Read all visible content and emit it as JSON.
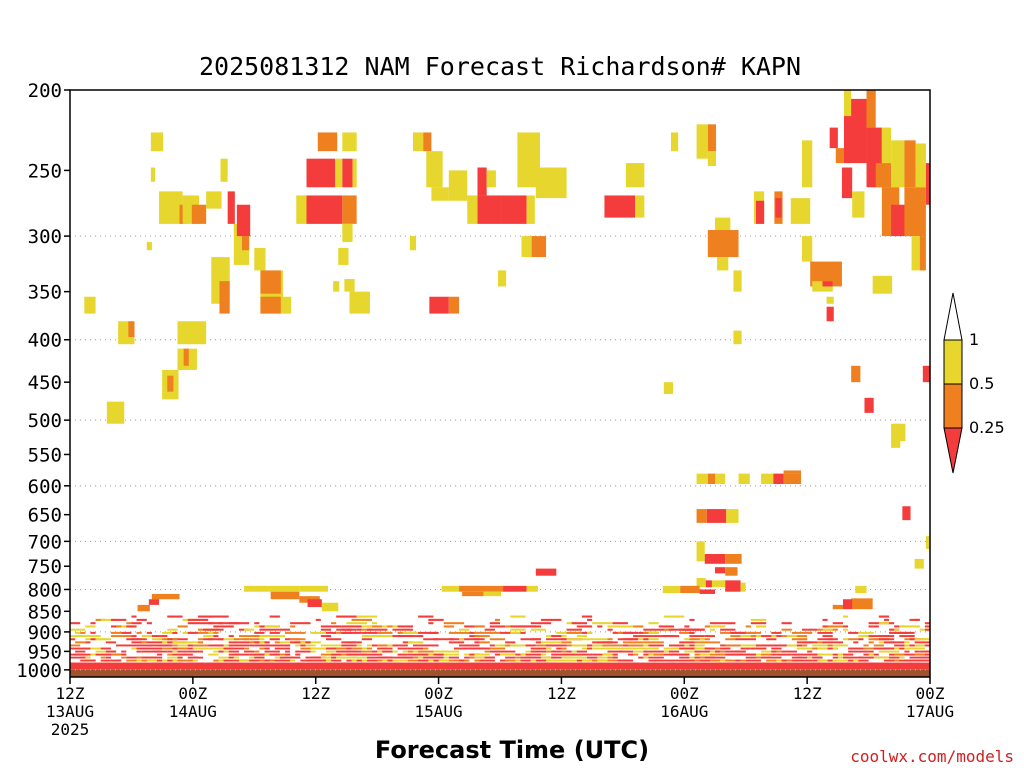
{
  "chart_data": {
    "type": "heatmap",
    "title": "2025081312 NAM Forecast Richardson# KAPN",
    "xlabel": "Forecast Time (UTC)",
    "credit": "coolwx.com/models",
    "y_ticks": [
      "200",
      "250",
      "300",
      "350",
      "400",
      "450",
      "500",
      "550",
      "600",
      "650",
      "700",
      "750",
      "800",
      "850",
      "900",
      "950",
      "1000"
    ],
    "y_gridlines": [
      300,
      400,
      500,
      600,
      700,
      800,
      900,
      1000
    ],
    "x_ticks": [
      {
        "hour": 0,
        "line1": "12Z",
        "line2": "13AUG",
        "line3": "2025"
      },
      {
        "hour": 12,
        "line1": "00Z",
        "line2": "14AUG",
        "line3": ""
      },
      {
        "hour": 24,
        "line1": "12Z",
        "line2": "",
        "line3": ""
      },
      {
        "hour": 36,
        "line1": "00Z",
        "line2": "15AUG",
        "line3": ""
      },
      {
        "hour": 48,
        "line1": "12Z",
        "line2": "",
        "line3": ""
      },
      {
        "hour": 60,
        "line1": "00Z",
        "line2": "16AUG",
        "line3": ""
      },
      {
        "hour": 72,
        "line1": "12Z",
        "line2": "",
        "line3": ""
      },
      {
        "hour": 84,
        "line1": "00Z",
        "line2": "17AUG",
        "line3": ""
      }
    ],
    "x_range_hours": [
      0,
      84
    ],
    "y_range_hPa": [
      200,
      1020
    ],
    "y_scale": "log",
    "grid": "dotted at 300-1000 hPa",
    "colorbar": {
      "placement": "right",
      "labels": [
        "1",
        "0.5",
        "0.25"
      ],
      "bins": [
        {
          "range": "<0.25",
          "color": "#f43c3c"
        },
        {
          "range": "0.25-0.5",
          "color": "#ee8020"
        },
        {
          "range": "0.5-1",
          "color": "#e6d62e"
        },
        {
          "range": ">1",
          "color": "#ffffff"
        }
      ]
    },
    "ground_color": "#a0522d",
    "ground_level_hPa": 1000,
    "cells": [
      {
        "t0": 7.9,
        "t1": 9.1,
        "p0": 225,
        "p1": 237,
        "c": "y"
      },
      {
        "t0": 7.9,
        "t1": 8.3,
        "p0": 248,
        "p1": 258,
        "c": "y"
      },
      {
        "t0": 8.7,
        "t1": 11.0,
        "p0": 265,
        "p1": 290,
        "c": "y"
      },
      {
        "t0": 10.7,
        "t1": 11.3,
        "p0": 275,
        "p1": 290,
        "c": "o"
      },
      {
        "t0": 11.0,
        "t1": 12.6,
        "p0": 268,
        "p1": 290,
        "c": "y"
      },
      {
        "t0": 11.9,
        "t1": 13.3,
        "p0": 275,
        "p1": 290,
        "c": "o"
      },
      {
        "t0": 13.3,
        "t1": 14.8,
        "p0": 265,
        "p1": 278,
        "c": "y"
      },
      {
        "t0": 14.7,
        "t1": 15.4,
        "p0": 242,
        "p1": 258,
        "c": "y"
      },
      {
        "t0": 15.4,
        "t1": 16.1,
        "p0": 265,
        "p1": 290,
        "c": "r"
      },
      {
        "t0": 16.0,
        "t1": 17.5,
        "p0": 290,
        "p1": 325,
        "c": "y"
      },
      {
        "t0": 16.8,
        "t1": 17.5,
        "p0": 300,
        "p1": 312,
        "c": "o"
      },
      {
        "t0": 7.5,
        "t1": 8.0,
        "p0": 305,
        "p1": 312,
        "c": "y"
      },
      {
        "t0": 1.4,
        "t1": 2.5,
        "p0": 355,
        "p1": 372,
        "c": "y"
      },
      {
        "t0": 4.7,
        "t1": 6.3,
        "p0": 380,
        "p1": 405,
        "c": "y"
      },
      {
        "t0": 5.7,
        "t1": 6.3,
        "p0": 380,
        "p1": 397,
        "c": "o"
      },
      {
        "t0": 10.5,
        "t1": 13.3,
        "p0": 380,
        "p1": 405,
        "c": "y"
      },
      {
        "t0": 10.5,
        "t1": 12.4,
        "p0": 410,
        "p1": 435,
        "c": "y"
      },
      {
        "t0": 11.1,
        "t1": 11.6,
        "p0": 410,
        "p1": 430,
        "c": "o"
      },
      {
        "t0": 9.0,
        "t1": 10.6,
        "p0": 435,
        "p1": 472,
        "c": "y"
      },
      {
        "t0": 9.5,
        "t1": 10.1,
        "p0": 442,
        "p1": 462,
        "c": "o"
      },
      {
        "t0": 3.6,
        "t1": 5.3,
        "p0": 475,
        "p1": 505,
        "c": "y"
      },
      {
        "t0": 13.8,
        "t1": 15.6,
        "p0": 318,
        "p1": 362,
        "c": "y"
      },
      {
        "t0": 14.6,
        "t1": 15.6,
        "p0": 340,
        "p1": 372,
        "c": "o"
      },
      {
        "t0": 18.0,
        "t1": 19.1,
        "p0": 310,
        "p1": 330,
        "c": "y"
      },
      {
        "t0": 18.6,
        "t1": 20.8,
        "p0": 330,
        "p1": 372,
        "c": "y"
      },
      {
        "t0": 18.6,
        "t1": 20.6,
        "p0": 330,
        "p1": 352,
        "c": "o"
      },
      {
        "t0": 18.6,
        "t1": 20.6,
        "p0": 355,
        "p1": 372,
        "c": "o"
      },
      {
        "t0": 20.6,
        "t1": 21.6,
        "p0": 355,
        "p1": 372,
        "c": "y"
      },
      {
        "t0": 16.3,
        "t1": 17.6,
        "p0": 275,
        "p1": 300,
        "c": "r"
      },
      {
        "t0": 22.1,
        "t1": 23.1,
        "p0": 268,
        "p1": 290,
        "c": "y"
      },
      {
        "t0": 23.1,
        "t1": 26.6,
        "p0": 268,
        "p1": 290,
        "c": "r"
      },
      {
        "t0": 26.6,
        "t1": 28.0,
        "p0": 268,
        "p1": 290,
        "c": "o"
      },
      {
        "t0": 23.1,
        "t1": 25.9,
        "p0": 242,
        "p1": 262,
        "c": "r"
      },
      {
        "t0": 25.9,
        "t1": 26.6,
        "p0": 242,
        "p1": 262,
        "c": "y"
      },
      {
        "t0": 26.6,
        "t1": 27.6,
        "p0": 242,
        "p1": 262,
        "c": "r"
      },
      {
        "t0": 27.6,
        "t1": 28.0,
        "p0": 242,
        "p1": 262,
        "c": "y"
      },
      {
        "t0": 24.2,
        "t1": 26.1,
        "p0": 225,
        "p1": 237,
        "c": "o"
      },
      {
        "t0": 26.6,
        "t1": 28.0,
        "p0": 225,
        "p1": 237,
        "c": "y"
      },
      {
        "t0": 26.6,
        "t1": 27.6,
        "p0": 290,
        "p1": 305,
        "c": "y"
      },
      {
        "t0": 26.2,
        "t1": 27.2,
        "p0": 310,
        "p1": 325,
        "c": "y"
      },
      {
        "t0": 26.8,
        "t1": 27.8,
        "p0": 338,
        "p1": 350,
        "c": "y"
      },
      {
        "t0": 27.3,
        "t1": 29.3,
        "p0": 350,
        "p1": 372,
        "c": "y"
      },
      {
        "t0": 25.7,
        "t1": 26.3,
        "p0": 340,
        "p1": 350,
        "c": "y"
      },
      {
        "t0": 33.5,
        "t1": 34.5,
        "p0": 225,
        "p1": 237,
        "c": "y"
      },
      {
        "t0": 34.5,
        "t1": 35.3,
        "p0": 225,
        "p1": 237,
        "c": "o"
      },
      {
        "t0": 34.8,
        "t1": 36.4,
        "p0": 237,
        "p1": 262,
        "c": "y"
      },
      {
        "t0": 35.3,
        "t1": 37.0,
        "p0": 262,
        "p1": 272,
        "c": "y"
      },
      {
        "t0": 37.0,
        "t1": 38.8,
        "p0": 250,
        "p1": 272,
        "c": "y"
      },
      {
        "t0": 39.8,
        "t1": 40.7,
        "p0": 248,
        "p1": 268,
        "c": "r"
      },
      {
        "t0": 40.7,
        "t1": 41.6,
        "p0": 250,
        "p1": 262,
        "c": "y"
      },
      {
        "t0": 39.8,
        "t1": 42.1,
        "p0": 268,
        "p1": 290,
        "c": "r"
      },
      {
        "t0": 38.8,
        "t1": 39.8,
        "p0": 268,
        "p1": 290,
        "c": "y"
      },
      {
        "t0": 42.1,
        "t1": 44.6,
        "p0": 268,
        "p1": 290,
        "c": "r"
      },
      {
        "t0": 44.6,
        "t1": 45.4,
        "p0": 268,
        "p1": 290,
        "c": "y"
      },
      {
        "t0": 43.7,
        "t1": 45.9,
        "p0": 225,
        "p1": 262,
        "c": "y"
      },
      {
        "t0": 45.5,
        "t1": 48.5,
        "p0": 248,
        "p1": 270,
        "c": "y"
      },
      {
        "t0": 44.6,
        "t1": 46.5,
        "p0": 300,
        "p1": 318,
        "c": "o"
      },
      {
        "t0": 44.1,
        "t1": 45.1,
        "p0": 300,
        "p1": 318,
        "c": "y"
      },
      {
        "t0": 41.8,
        "t1": 42.6,
        "p0": 330,
        "p1": 345,
        "c": "y"
      },
      {
        "t0": 33.2,
        "t1": 33.8,
        "p0": 300,
        "p1": 312,
        "c": "y"
      },
      {
        "t0": 35.1,
        "t1": 37.0,
        "p0": 355,
        "p1": 372,
        "c": "r"
      },
      {
        "t0": 37.0,
        "t1": 38.0,
        "p0": 355,
        "p1": 372,
        "c": "o"
      },
      {
        "t0": 52.2,
        "t1": 55.2,
        "p0": 268,
        "p1": 285,
        "c": "r"
      },
      {
        "t0": 55.2,
        "t1": 56.1,
        "p0": 268,
        "p1": 285,
        "c": "y"
      },
      {
        "t0": 54.3,
        "t1": 56.1,
        "p0": 245,
        "p1": 262,
        "c": "y"
      },
      {
        "t0": 58.7,
        "t1": 59.4,
        "p0": 225,
        "p1": 237,
        "c": "y"
      },
      {
        "t0": 61.2,
        "t1": 62.3,
        "p0": 220,
        "p1": 242,
        "c": "y"
      },
      {
        "t0": 62.3,
        "t1": 63.1,
        "p0": 220,
        "p1": 237,
        "c": "o"
      },
      {
        "t0": 62.3,
        "t1": 63.1,
        "p0": 237,
        "p1": 247,
        "c": "y"
      },
      {
        "t0": 63.0,
        "t1": 64.5,
        "p0": 285,
        "p1": 312,
        "c": "y"
      },
      {
        "t0": 62.3,
        "t1": 65.3,
        "p0": 295,
        "p1": 318,
        "c": "o"
      },
      {
        "t0": 63.2,
        "t1": 64.3,
        "p0": 318,
        "p1": 330,
        "c": "y"
      },
      {
        "t0": 64.8,
        "t1": 65.6,
        "p0": 330,
        "p1": 350,
        "c": "y"
      },
      {
        "t0": 64.8,
        "t1": 65.6,
        "p0": 390,
        "p1": 405,
        "c": "y"
      },
      {
        "t0": 58.0,
        "t1": 58.9,
        "p0": 450,
        "p1": 465,
        "c": "y"
      },
      {
        "t0": 66.8,
        "t1": 67.8,
        "p0": 265,
        "p1": 290,
        "c": "y"
      },
      {
        "t0": 67.0,
        "t1": 67.8,
        "p0": 272,
        "p1": 290,
        "c": "r"
      },
      {
        "t0": 68.8,
        "t1": 69.6,
        "p0": 265,
        "p1": 290,
        "c": "o"
      },
      {
        "t0": 68.9,
        "t1": 69.5,
        "p0": 270,
        "p1": 285,
        "c": "r"
      },
      {
        "t0": 70.4,
        "t1": 72.3,
        "p0": 270,
        "p1": 290,
        "c": "y"
      },
      {
        "t0": 71.5,
        "t1": 72.5,
        "p0": 230,
        "p1": 262,
        "c": "y"
      },
      {
        "t0": 71.5,
        "t1": 72.5,
        "p0": 300,
        "p1": 322,
        "c": "y"
      },
      {
        "t0": 72.3,
        "t1": 75.4,
        "p0": 322,
        "p1": 345,
        "c": "o"
      },
      {
        "t0": 72.5,
        "t1": 74.5,
        "p0": 340,
        "p1": 350,
        "c": "y"
      },
      {
        "t0": 73.5,
        "t1": 74.5,
        "p0": 340,
        "p1": 345,
        "c": "r"
      },
      {
        "t0": 73.9,
        "t1": 74.6,
        "p0": 365,
        "p1": 380,
        "c": "r"
      },
      {
        "t0": 73.9,
        "t1": 74.6,
        "p0": 355,
        "p1": 362,
        "c": "y"
      },
      {
        "t0": 75.4,
        "t1": 76.4,
        "p0": 248,
        "p1": 270,
        "c": "r"
      },
      {
        "t0": 76.4,
        "t1": 77.6,
        "p0": 265,
        "p1": 285,
        "c": "y"
      },
      {
        "t0": 75.6,
        "t1": 77.8,
        "p0": 205,
        "p1": 245,
        "c": "r"
      },
      {
        "t0": 75.6,
        "t1": 76.3,
        "p0": 200,
        "p1": 215,
        "c": "y"
      },
      {
        "t0": 77.8,
        "t1": 78.7,
        "p0": 200,
        "p1": 222,
        "c": "o"
      },
      {
        "t0": 74.2,
        "t1": 75.0,
        "p0": 222,
        "p1": 235,
        "c": "r"
      },
      {
        "t0": 74.8,
        "t1": 75.6,
        "p0": 235,
        "p1": 245,
        "c": "o"
      },
      {
        "t0": 77.8,
        "t1": 79.3,
        "p0": 222,
        "p1": 262,
        "c": "r"
      },
      {
        "t0": 79.3,
        "t1": 80.2,
        "p0": 222,
        "p1": 262,
        "c": "y"
      },
      {
        "t0": 78.7,
        "t1": 80.2,
        "p0": 245,
        "p1": 262,
        "c": "o"
      },
      {
        "t0": 80.2,
        "t1": 81.5,
        "p0": 230,
        "p1": 262,
        "c": "y"
      },
      {
        "t0": 81.5,
        "t1": 82.6,
        "p0": 230,
        "p1": 262,
        "c": "o"
      },
      {
        "t0": 82.6,
        "t1": 83.6,
        "p0": 232,
        "p1": 262,
        "c": "y"
      },
      {
        "t0": 83.6,
        "t1": 84.0,
        "p0": 245,
        "p1": 275,
        "c": "r"
      },
      {
        "t0": 79.3,
        "t1": 81.0,
        "p0": 262,
        "p1": 300,
        "c": "o"
      },
      {
        "t0": 80.2,
        "t1": 82.2,
        "p0": 275,
        "p1": 300,
        "c": "r"
      },
      {
        "t0": 81.5,
        "t1": 83.6,
        "p0": 262,
        "p1": 300,
        "c": "o"
      },
      {
        "t0": 82.2,
        "t1": 83.0,
        "p0": 300,
        "p1": 330,
        "c": "y"
      },
      {
        "t0": 83.0,
        "t1": 83.6,
        "p0": 300,
        "p1": 330,
        "c": "o"
      },
      {
        "t0": 78.4,
        "t1": 80.3,
        "p0": 335,
        "p1": 352,
        "c": "y"
      },
      {
        "t0": 76.3,
        "t1": 77.2,
        "p0": 430,
        "p1": 450,
        "c": "o"
      },
      {
        "t0": 77.6,
        "t1": 78.5,
        "p0": 470,
        "p1": 490,
        "c": "r"
      },
      {
        "t0": 80.2,
        "t1": 81.1,
        "p0": 505,
        "p1": 540,
        "c": "y"
      },
      {
        "t0": 80.6,
        "t1": 81.6,
        "p0": 505,
        "p1": 530,
        "c": "y"
      },
      {
        "t0": 83.3,
        "t1": 84.0,
        "p0": 430,
        "p1": 450,
        "c": "r"
      },
      {
        "t0": 61.2,
        "t1": 62.3,
        "p0": 580,
        "p1": 597,
        "c": "y"
      },
      {
        "t0": 62.3,
        "t1": 63.0,
        "p0": 580,
        "p1": 597,
        "c": "o"
      },
      {
        "t0": 63.0,
        "t1": 64.0,
        "p0": 580,
        "p1": 597,
        "c": "y"
      },
      {
        "t0": 65.3,
        "t1": 66.4,
        "p0": 580,
        "p1": 597,
        "c": "y"
      },
      {
        "t0": 67.5,
        "t1": 68.7,
        "p0": 580,
        "p1": 597,
        "c": "y"
      },
      {
        "t0": 68.7,
        "t1": 69.7,
        "p0": 580,
        "p1": 597,
        "c": "r"
      },
      {
        "t0": 69.7,
        "t1": 71.4,
        "p0": 580,
        "p1": 597,
        "c": "o"
      },
      {
        "t0": 69.7,
        "t1": 71.4,
        "p0": 575,
        "p1": 580,
        "c": "o"
      },
      {
        "t0": 61.2,
        "t1": 62.2,
        "p0": 640,
        "p1": 665,
        "c": "o"
      },
      {
        "t0": 62.2,
        "t1": 64.1,
        "p0": 640,
        "p1": 665,
        "c": "r"
      },
      {
        "t0": 64.1,
        "t1": 65.3,
        "p0": 640,
        "p1": 665,
        "c": "y"
      },
      {
        "t0": 81.3,
        "t1": 82.1,
        "p0": 635,
        "p1": 660,
        "c": "r"
      },
      {
        "t0": 61.2,
        "t1": 62.0,
        "p0": 700,
        "p1": 740,
        "c": "y"
      },
      {
        "t0": 62.0,
        "t1": 64.0,
        "p0": 725,
        "p1": 745,
        "c": "r"
      },
      {
        "t0": 64.0,
        "t1": 65.6,
        "p0": 725,
        "p1": 745,
        "c": "o"
      },
      {
        "t0": 63.0,
        "t1": 64.0,
        "p0": 752,
        "p1": 765,
        "c": "r"
      },
      {
        "t0": 64.0,
        "t1": 65.2,
        "p0": 752,
        "p1": 770,
        "c": "o"
      },
      {
        "t0": 61.2,
        "t1": 62.1,
        "p0": 775,
        "p1": 795,
        "c": "y"
      },
      {
        "t0": 62.1,
        "t1": 62.7,
        "p0": 780,
        "p1": 795,
        "c": "r"
      },
      {
        "t0": 62.7,
        "t1": 64.0,
        "p0": 780,
        "p1": 795,
        "c": "y"
      },
      {
        "t0": 64.0,
        "t1": 65.5,
        "p0": 780,
        "p1": 805,
        "c": "r"
      },
      {
        "t0": 65.5,
        "t1": 66.0,
        "p0": 785,
        "p1": 805,
        "c": "y"
      },
      {
        "t0": 83.6,
        "t1": 84.0,
        "p0": 690,
        "p1": 715,
        "c": "y"
      },
      {
        "t0": 82.5,
        "t1": 83.4,
        "p0": 735,
        "p1": 755,
        "c": "y"
      },
      {
        "t0": 45.5,
        "t1": 47.5,
        "p0": 755,
        "p1": 770,
        "c": "r"
      },
      {
        "t0": 17.0,
        "t1": 22.4,
        "p0": 792,
        "p1": 805,
        "c": "y"
      },
      {
        "t0": 22.4,
        "t1": 25.2,
        "p0": 792,
        "p1": 805,
        "c": "y"
      },
      {
        "t0": 19.6,
        "t1": 22.4,
        "p0": 805,
        "p1": 822,
        "c": "o"
      },
      {
        "t0": 22.4,
        "t1": 24.4,
        "p0": 815,
        "p1": 830,
        "c": "o"
      },
      {
        "t0": 23.2,
        "t1": 24.6,
        "p0": 822,
        "p1": 840,
        "c": "r"
      },
      {
        "t0": 24.6,
        "t1": 26.2,
        "p0": 830,
        "p1": 850,
        "c": "y"
      },
      {
        "t0": 36.3,
        "t1": 38.0,
        "p0": 792,
        "p1": 805,
        "c": "y"
      },
      {
        "t0": 38.0,
        "t1": 42.3,
        "p0": 792,
        "p1": 805,
        "c": "o"
      },
      {
        "t0": 42.3,
        "t1": 44.6,
        "p0": 792,
        "p1": 805,
        "c": "r"
      },
      {
        "t0": 44.6,
        "t1": 45.7,
        "p0": 792,
        "p1": 805,
        "c": "y"
      },
      {
        "t0": 38.3,
        "t1": 40.4,
        "p0": 805,
        "p1": 815,
        "c": "o"
      },
      {
        "t0": 40.4,
        "t1": 42.1,
        "p0": 805,
        "p1": 815,
        "c": "y"
      },
      {
        "t0": 8.0,
        "t1": 10.7,
        "p0": 810,
        "p1": 822,
        "c": "o"
      },
      {
        "t0": 7.7,
        "t1": 8.7,
        "p0": 822,
        "p1": 835,
        "c": "r"
      },
      {
        "t0": 6.6,
        "t1": 7.8,
        "p0": 835,
        "p1": 850,
        "c": "o"
      },
      {
        "t0": 57.9,
        "t1": 59.6,
        "p0": 792,
        "p1": 808,
        "c": "y"
      },
      {
        "t0": 59.6,
        "t1": 61.5,
        "p0": 792,
        "p1": 808,
        "c": "o"
      },
      {
        "t0": 61.5,
        "t1": 63.0,
        "p0": 800,
        "p1": 810,
        "c": "r"
      },
      {
        "t0": 76.7,
        "t1": 77.8,
        "p0": 792,
        "p1": 808,
        "c": "y"
      },
      {
        "t0": 76.3,
        "t1": 78.4,
        "p0": 820,
        "p1": 845,
        "c": "o"
      },
      {
        "t0": 75.5,
        "t1": 76.4,
        "p0": 822,
        "p1": 845,
        "c": "r"
      },
      {
        "t0": 74.5,
        "t1": 75.5,
        "p0": 835,
        "p1": 845,
        "c": "o"
      }
    ],
    "low_noise_seed": 7
  }
}
